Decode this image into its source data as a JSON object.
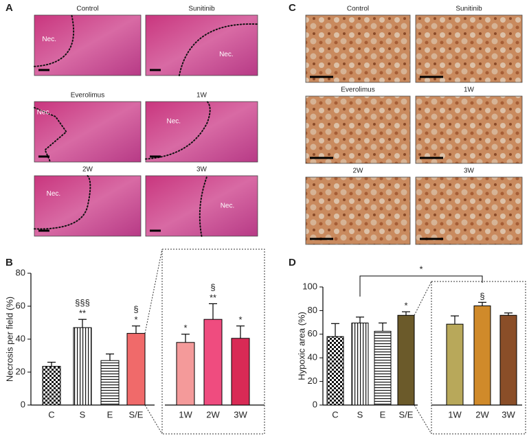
{
  "panels": [
    {
      "panel": "A",
      "images": [
        {
          "label": "Control",
          "note": "Nec."
        },
        {
          "label": "Sunitinib",
          "note": "Nec."
        },
        {
          "label": "Everolimus",
          "note": "Nec."
        },
        {
          "label": "1W",
          "note": "Nec."
        },
        {
          "label": "2W",
          "note": "Nec."
        },
        {
          "label": "3W",
          "note": "Nec."
        }
      ]
    },
    {
      "panel": "C",
      "images": [
        {
          "label": "Control"
        },
        {
          "label": "Sunitinib"
        },
        {
          "label": "Everolimus"
        },
        {
          "label": "1W"
        },
        {
          "label": "2W"
        },
        {
          "label": "3W"
        }
      ]
    }
  ],
  "chart_data": [
    {
      "type": "bar",
      "panel": "B",
      "y_label": "Necrosis per field (%)",
      "categories": [
        "C",
        "S",
        "E",
        "S/E",
        "1W",
        "2W",
        "3W"
      ],
      "values": [
        23.5,
        47,
        27,
        43.5,
        38,
        52,
        40.5
      ],
      "errors": [
        2.5,
        5,
        4,
        4.5,
        5,
        9.5,
        7.5
      ],
      "colors": [
        "#ffffff",
        "#ffffff",
        "#ffffff",
        "#f06a6a",
        "#f49a9a",
        "#ef4c7f",
        "#d92a55"
      ],
      "fills": [
        "checker",
        "vstripe",
        "hstripe",
        "solid",
        "solid",
        "solid",
        "solid"
      ],
      "annotations": [
        [],
        [
          "**",
          "§§§"
        ],
        [],
        [
          "*",
          "§"
        ],
        [
          "*"
        ],
        [
          "**",
          "§"
        ],
        [
          "*"
        ]
      ],
      "ylim": [
        0,
        80
      ],
      "yticks": [
        0,
        20,
        40,
        60,
        80
      ]
    },
    {
      "type": "bar",
      "panel": "D",
      "y_label": "Hypoxic area (%)",
      "categories": [
        "C",
        "S",
        "E",
        "S/E",
        "1W",
        "2W",
        "3W"
      ],
      "values": [
        58,
        69.5,
        62.5,
        76,
        68.5,
        84,
        76
      ],
      "errors": [
        11,
        5,
        7,
        3,
        7,
        3,
        2
      ],
      "colors": [
        "#ffffff",
        "#ffffff",
        "#ffffff",
        "#6b5a2a",
        "#b8a85a",
        "#d08a2a",
        "#8a4e28"
      ],
      "fills": [
        "checker",
        "vstripe",
        "hstripe",
        "solid",
        "solid",
        "solid",
        "solid"
      ],
      "annotations": [
        [],
        [],
        [],
        [
          "*"
        ],
        [],
        [
          "§"
        ],
        []
      ],
      "bracket": {
        "categories": [
          "S",
          "2W"
        ],
        "label": "*"
      },
      "ylim": [
        0,
        100
      ],
      "yticks": [
        0,
        20,
        40,
        60,
        80,
        100
      ]
    }
  ]
}
